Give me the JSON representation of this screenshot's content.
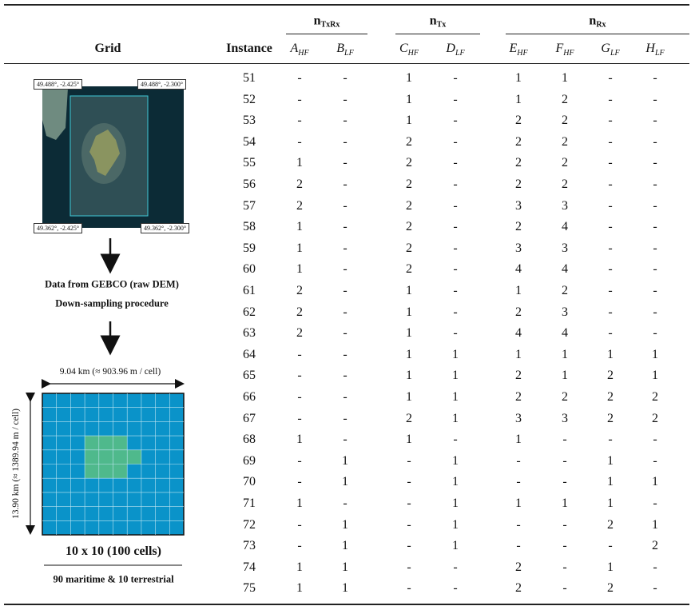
{
  "header": {
    "grid": "Grid",
    "instance": "Instance",
    "groups": [
      {
        "label": "n",
        "sub": "TxRx"
      },
      {
        "label": "n",
        "sub": "Tx"
      },
      {
        "label": "n",
        "sub": "Rx"
      }
    ],
    "columns": [
      {
        "letter": "A",
        "sub": "HF"
      },
      {
        "letter": "B",
        "sub": "LF"
      },
      {
        "letter": "C",
        "sub": "HF"
      },
      {
        "letter": "D",
        "sub": "LF"
      },
      {
        "letter": "E",
        "sub": "HF"
      },
      {
        "letter": "F",
        "sub": "HF"
      },
      {
        "letter": "G",
        "sub": "LF"
      },
      {
        "letter": "H",
        "sub": "LF"
      }
    ]
  },
  "grid_panel": {
    "coordinates": {
      "top_left": "49.488°, -2.425°",
      "top_right": "49.488°, -2.300°",
      "bottom_left": "49.362°, -2.425°",
      "bottom_right": "49.362°, -2.300°"
    },
    "steps": [
      "Data from GEBCO (raw DEM)",
      "Down-sampling procedure"
    ],
    "width_label": "9.04 km (≈ 903.96 m / cell)",
    "height_label": "13.90 km (≈ 1389.94 m / cell)",
    "size": "10 x 10 (100 cells)",
    "composition": "90 maritime & 10 terrestrial"
  },
  "table": {
    "rows": [
      [
        51,
        "-",
        "-",
        1,
        "-",
        1,
        1,
        "-",
        "-"
      ],
      [
        52,
        "-",
        "-",
        1,
        "-",
        1,
        2,
        "-",
        "-"
      ],
      [
        53,
        "-",
        "-",
        1,
        "-",
        2,
        2,
        "-",
        "-"
      ],
      [
        54,
        "-",
        "-",
        2,
        "-",
        2,
        2,
        "-",
        "-"
      ],
      [
        55,
        1,
        "-",
        2,
        "-",
        2,
        2,
        "-",
        "-"
      ],
      [
        56,
        2,
        "-",
        2,
        "-",
        2,
        2,
        "-",
        "-"
      ],
      [
        57,
        2,
        "-",
        2,
        "-",
        3,
        3,
        "-",
        "-"
      ],
      [
        58,
        1,
        "-",
        2,
        "-",
        2,
        4,
        "-",
        "-"
      ],
      [
        59,
        1,
        "-",
        2,
        "-",
        3,
        3,
        "-",
        "-"
      ],
      [
        60,
        1,
        "-",
        2,
        "-",
        4,
        4,
        "-",
        "-"
      ],
      [
        61,
        2,
        "-",
        1,
        "-",
        1,
        2,
        "-",
        "-"
      ],
      [
        62,
        2,
        "-",
        1,
        "-",
        2,
        3,
        "-",
        "-"
      ],
      [
        63,
        2,
        "-",
        1,
        "-",
        4,
        4,
        "-",
        "-"
      ],
      [
        64,
        "-",
        "-",
        1,
        1,
        1,
        1,
        1,
        1
      ],
      [
        65,
        "-",
        "-",
        1,
        1,
        2,
        1,
        2,
        1
      ],
      [
        66,
        "-",
        "-",
        1,
        1,
        2,
        2,
        2,
        2
      ],
      [
        67,
        "-",
        "-",
        2,
        1,
        3,
        3,
        2,
        2
      ],
      [
        68,
        1,
        "-",
        1,
        "-",
        1,
        "-",
        "-",
        "-"
      ],
      [
        69,
        "-",
        1,
        "-",
        1,
        "-",
        "-",
        1,
        "-"
      ],
      [
        70,
        "-",
        1,
        "-",
        1,
        "-",
        "-",
        1,
        1
      ],
      [
        71,
        1,
        "-",
        "-",
        1,
        1,
        1,
        1,
        "-"
      ],
      [
        72,
        "-",
        1,
        "-",
        1,
        "-",
        "-",
        2,
        1
      ],
      [
        73,
        "-",
        1,
        "-",
        1,
        "-",
        "-",
        "-",
        2
      ],
      [
        74,
        1,
        1,
        "-",
        "-",
        2,
        "-",
        1,
        "-"
      ],
      [
        75,
        1,
        1,
        "-",
        "-",
        2,
        "-",
        2,
        "-"
      ]
    ]
  }
}
